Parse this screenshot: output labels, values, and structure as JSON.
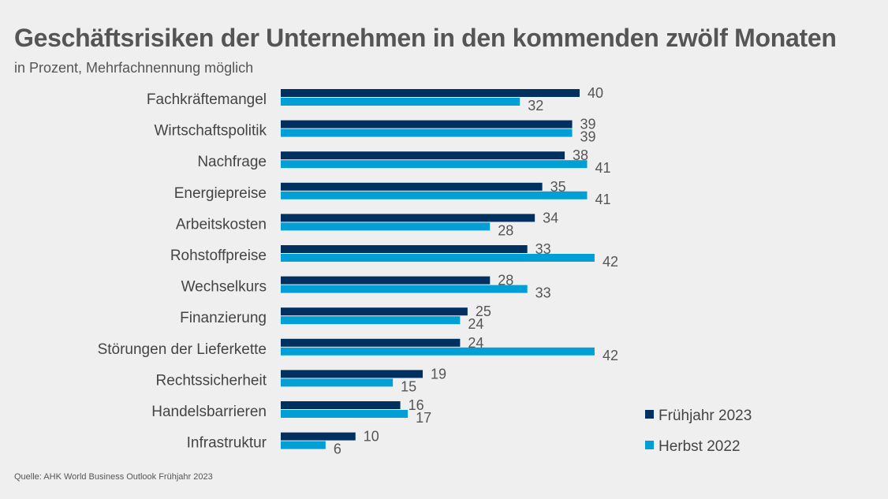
{
  "chart_data": {
    "type": "bar",
    "orientation": "horizontal",
    "title": "Geschäftsrisiken der Unternehmen in den kommenden zwölf Monaten",
    "subtitle": "in Prozent, Mehrfachnennung möglich",
    "source": "Quelle: AHK World Business Outlook Frühjahr 2023",
    "categories": [
      "Fachkräftemangel",
      "Wirtschaftspolitik",
      "Nachfrage",
      "Energiepreise",
      "Arbeitskosten",
      "Rohstoffpreise",
      "Wechselkurs",
      "Finanzierung",
      "Störungen der Lieferkette",
      "Rechtssicherheit",
      "Handelsbarrieren",
      "Infrastruktur"
    ],
    "series": [
      {
        "name": "Frühjahr 2023",
        "color": "#00305f",
        "values": [
          40,
          39,
          38,
          35,
          34,
          33,
          28,
          25,
          24,
          19,
          16,
          10
        ]
      },
      {
        "name": "Herbst 2022",
        "color": "#009fd6",
        "values": [
          32,
          39,
          41,
          41,
          28,
          42,
          33,
          24,
          42,
          15,
          17,
          6
        ]
      }
    ],
    "xlim": [
      0,
      42
    ],
    "grid": false,
    "data_labels": true,
    "legend_position": "bottom-right"
  }
}
